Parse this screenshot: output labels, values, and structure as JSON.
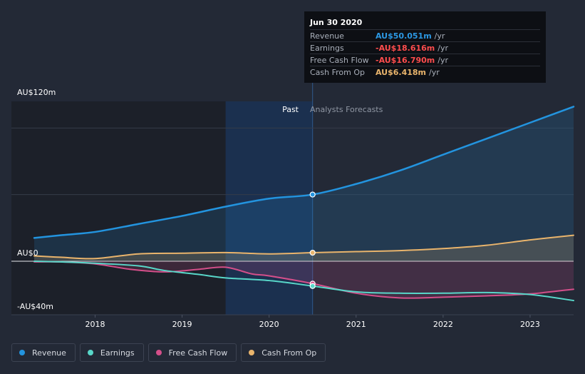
{
  "colors": {
    "background": "#232936",
    "revenue": "#2394df",
    "earnings": "#58d7c9",
    "free_cash_flow": "#d44f8a",
    "cash_from_op": "#e9b46c"
  },
  "tooltip": {
    "date": "Jun 30 2020",
    "rows": [
      {
        "label": "Revenue",
        "value": "AU$50.051m",
        "unit": "/yr",
        "color": "#2c98e3"
      },
      {
        "label": "Earnings",
        "value": "-AU$18.616m",
        "unit": "/yr",
        "color": "#ff4d4d"
      },
      {
        "label": "Free Cash Flow",
        "value": "-AU$16.790m",
        "unit": "/yr",
        "color": "#ff4d4d"
      },
      {
        "label": "Cash From Op",
        "value": "AU$6.418m",
        "unit": "/yr",
        "color": "#e9b46c"
      }
    ]
  },
  "legend": [
    {
      "label": "Revenue",
      "color": "#2394df"
    },
    {
      "label": "Earnings",
      "color": "#58d7c9"
    },
    {
      "label": "Free Cash Flow",
      "color": "#d44f8a"
    },
    {
      "label": "Cash From Op",
      "color": "#e9b46c"
    }
  ],
  "chart_data": {
    "type": "line",
    "title": "",
    "x_unit": "year",
    "xlim": [
      2017.3,
      2023.5
    ],
    "ylim": [
      -40,
      120
    ],
    "y_ticks": [
      {
        "value": 120,
        "label": "AU$120m"
      },
      {
        "value": 0,
        "label": "AU$0"
      },
      {
        "value": -40,
        "label": "-AU$40m"
      }
    ],
    "x_ticks": [
      {
        "value": 2018,
        "label": "2018"
      },
      {
        "value": 2019,
        "label": "2019"
      },
      {
        "value": 2020,
        "label": "2020"
      },
      {
        "value": 2021,
        "label": "2021"
      },
      {
        "value": 2022,
        "label": "2022"
      },
      {
        "value": 2023,
        "label": "2023"
      }
    ],
    "gridlines_y": [
      100,
      50,
      0
    ],
    "past_label": "Past",
    "forecast_label": "Analysts Forecasts",
    "past_end": 2020.5,
    "highlight_start": 2019.5,
    "series": [
      {
        "name": "Revenue",
        "key": "revenue",
        "area": true,
        "points": [
          [
            2017.3,
            17.5
          ],
          [
            2017.6,
            19.5
          ],
          [
            2018.0,
            22
          ],
          [
            2018.5,
            28
          ],
          [
            2019.0,
            34
          ],
          [
            2019.5,
            41
          ],
          [
            2020.0,
            47
          ],
          [
            2020.5,
            50.05
          ],
          [
            2021.0,
            58
          ],
          [
            2021.5,
            68
          ],
          [
            2022.0,
            80
          ],
          [
            2022.5,
            92
          ],
          [
            2023.0,
            104
          ],
          [
            2023.5,
            116
          ]
        ]
      },
      {
        "name": "Earnings",
        "key": "earnings",
        "area": false,
        "points": [
          [
            2017.3,
            0
          ],
          [
            2017.6,
            -0.5
          ],
          [
            2018.0,
            -1.5
          ],
          [
            2018.5,
            -3.5
          ],
          [
            2018.8,
            -7
          ],
          [
            2019.2,
            -10
          ],
          [
            2019.5,
            -12.5
          ],
          [
            2020.0,
            -14.5
          ],
          [
            2020.5,
            -18.6
          ],
          [
            2021.0,
            -23
          ],
          [
            2021.5,
            -24
          ],
          [
            2022.0,
            -24
          ],
          [
            2022.5,
            -23.5
          ],
          [
            2023.0,
            -25
          ],
          [
            2023.5,
            -29.5
          ]
        ]
      },
      {
        "name": "Free Cash Flow",
        "key": "free_cash_flow",
        "area": true,
        "points": [
          [
            2017.3,
            -0.5
          ],
          [
            2017.6,
            -0.5
          ],
          [
            2018.0,
            -2
          ],
          [
            2018.4,
            -6
          ],
          [
            2018.8,
            -8
          ],
          [
            2019.2,
            -6
          ],
          [
            2019.5,
            -4.5
          ],
          [
            2019.8,
            -9.5
          ],
          [
            2020.0,
            -11
          ],
          [
            2020.5,
            -16.8
          ],
          [
            2021.0,
            -24
          ],
          [
            2021.5,
            -27.5
          ],
          [
            2022.0,
            -27
          ],
          [
            2022.5,
            -26
          ],
          [
            2023.0,
            -24.5
          ],
          [
            2023.5,
            -21
          ]
        ]
      },
      {
        "name": "Cash From Op",
        "key": "cash_from_op",
        "area": true,
        "points": [
          [
            2017.3,
            4
          ],
          [
            2017.6,
            3
          ],
          [
            2018.0,
            2
          ],
          [
            2018.5,
            5.5
          ],
          [
            2019.0,
            6
          ],
          [
            2019.5,
            6.5
          ],
          [
            2020.0,
            5.5
          ],
          [
            2020.5,
            6.4
          ],
          [
            2021.0,
            7.2
          ],
          [
            2021.5,
            8
          ],
          [
            2022.0,
            9.5
          ],
          [
            2022.5,
            12
          ],
          [
            2023.0,
            16
          ],
          [
            2023.5,
            19.5
          ]
        ]
      }
    ]
  }
}
